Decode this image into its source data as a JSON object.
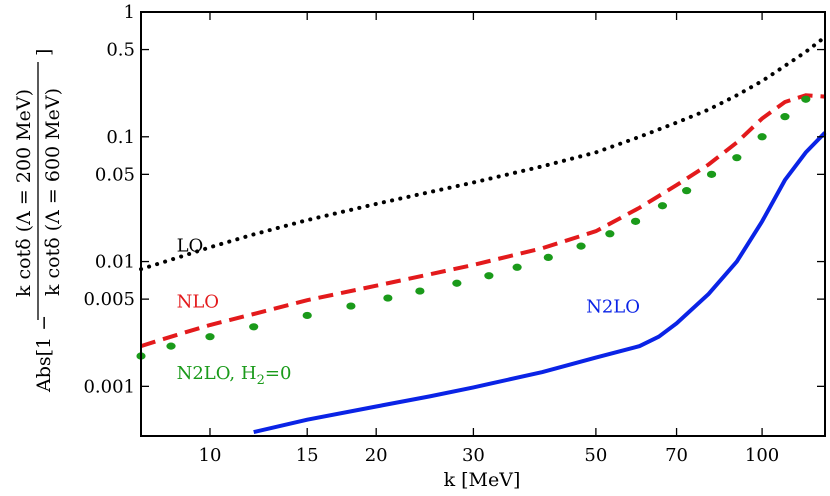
{
  "chart_data": {
    "type": "line",
    "xscale": "log",
    "yscale": "log",
    "xlim": [
      7.5,
      130
    ],
    "ylim": [
      0.0004,
      1
    ],
    "xlabel": "k [MeV]",
    "ylabel": {
      "prefix": "Abs[1 −",
      "numerator": "k cotδ (Λ = 200 MeV)",
      "denominator": "k cotδ (Λ = 600 MeV)",
      "suffix": "]"
    },
    "x_ticks": [
      {
        "value": 10,
        "label": "10"
      },
      {
        "value": 15,
        "label": "15"
      },
      {
        "value": 20,
        "label": "20"
      },
      {
        "value": 30,
        "label": "30"
      },
      {
        "value": 50,
        "label": "50"
      },
      {
        "value": 70,
        "label": "70"
      },
      {
        "value": 100,
        "label": "100"
      }
    ],
    "y_ticks": [
      {
        "value": 0.001,
        "label": "0.001"
      },
      {
        "value": 0.005,
        "label": "0.005"
      },
      {
        "value": 0.01,
        "label": "0.01"
      },
      {
        "value": 0.05,
        "label": "0.05"
      },
      {
        "value": 0.1,
        "label": "0.1"
      },
      {
        "value": 0.5,
        "label": "0.5"
      },
      {
        "value": 1,
        "label": "1"
      }
    ],
    "series": [
      {
        "name": "LO",
        "label": "LO",
        "color": "#000000",
        "style": "dotted",
        "label_pos": {
          "x": 8.7,
          "y": 0.012
        },
        "x": [
          7.5,
          8,
          9,
          10,
          12,
          15,
          20,
          25,
          30,
          40,
          50,
          60,
          70,
          80,
          90,
          100,
          110,
          120,
          130
        ],
        "y": [
          0.0087,
          0.0095,
          0.0112,
          0.013,
          0.0165,
          0.0215,
          0.029,
          0.036,
          0.043,
          0.058,
          0.075,
          0.1,
          0.13,
          0.165,
          0.215,
          0.28,
          0.37,
          0.48,
          0.63
        ]
      },
      {
        "name": "NLO",
        "label": "NLO",
        "color": "#e31a1c",
        "style": "dashed",
        "label_pos": {
          "x": 8.7,
          "y": 0.0043
        },
        "x": [
          7.5,
          8,
          9,
          10,
          12,
          15,
          20,
          25,
          30,
          40,
          50,
          60,
          70,
          80,
          90,
          100,
          110,
          120,
          130
        ],
        "y": [
          0.0021,
          0.0023,
          0.0027,
          0.0031,
          0.0038,
          0.0049,
          0.0064,
          0.0079,
          0.0094,
          0.0128,
          0.0175,
          0.027,
          0.041,
          0.06,
          0.09,
          0.14,
          0.19,
          0.215,
          0.21
        ]
      },
      {
        "name": "N2LO, H2=0",
        "label": "N2LO, H",
        "label_sub": "2",
        "label_suffix": "=0",
        "color": "#1a9a1a",
        "style": "dots",
        "label_pos": {
          "x": 8.7,
          "y": 0.00115
        },
        "x": [
          7.5,
          8.5,
          10,
          12,
          15,
          18,
          21,
          24,
          28,
          32,
          36,
          41,
          47,
          53,
          59,
          66,
          73,
          81,
          90,
          100,
          110,
          120
        ],
        "y": [
          0.00175,
          0.0021,
          0.0025,
          0.003,
          0.0037,
          0.0044,
          0.0051,
          0.0058,
          0.0067,
          0.0077,
          0.009,
          0.0108,
          0.0133,
          0.0167,
          0.021,
          0.028,
          0.037,
          0.05,
          0.068,
          0.1,
          0.145,
          0.2
        ]
      },
      {
        "name": "N2LO",
        "label": "N2LO",
        "color": "#0a23e6",
        "style": "solid",
        "label_pos": {
          "x": 48,
          "y": 0.0039
        },
        "x": [
          12,
          15,
          20,
          25,
          30,
          40,
          50,
          60,
          65,
          70,
          80,
          90,
          100,
          110,
          120,
          130
        ],
        "y": [
          0.00043,
          0.00054,
          0.00069,
          0.00083,
          0.00098,
          0.0013,
          0.0017,
          0.0021,
          0.0025,
          0.0032,
          0.0055,
          0.01,
          0.021,
          0.045,
          0.075,
          0.108
        ]
      }
    ]
  }
}
